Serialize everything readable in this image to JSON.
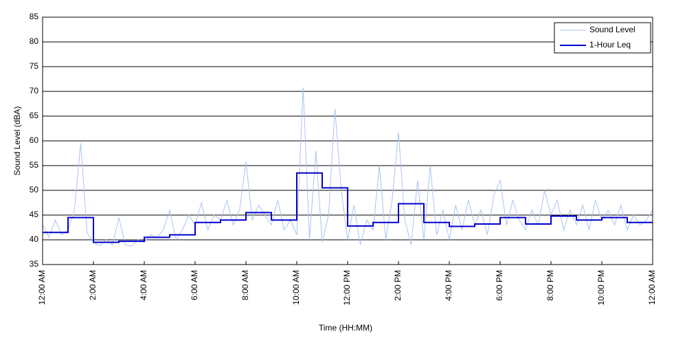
{
  "chart_data": {
    "type": "line",
    "xlabel": "Time (HH:MM)",
    "ylabel": "Sound Level (dBA)",
    "xlim": [
      0,
      24
    ],
    "xticks": [
      {
        "value": 0,
        "label": "12:00 AM"
      },
      {
        "value": 2,
        "label": "2:00 AM"
      },
      {
        "value": 4,
        "label": "4:00 AM"
      },
      {
        "value": 6,
        "label": "6:00 AM"
      },
      {
        "value": 8,
        "label": "8:00 AM"
      },
      {
        "value": 10,
        "label": "10:00 AM"
      },
      {
        "value": 12,
        "label": "12:00 PM"
      },
      {
        "value": 14,
        "label": "2:00 PM"
      },
      {
        "value": 16,
        "label": "4:00 PM"
      },
      {
        "value": 18,
        "label": "6:00 PM"
      },
      {
        "value": 20,
        "label": "8:00 PM"
      },
      {
        "value": 22,
        "label": "10:00 PM"
      },
      {
        "value": 24,
        "label": "12:00 AM"
      }
    ],
    "ylim": [
      35,
      85
    ],
    "yticks": [
      35,
      40,
      45,
      50,
      55,
      60,
      65,
      70,
      75,
      80,
      85
    ],
    "grid": true,
    "legend": "upper right",
    "series": [
      {
        "name": "Sound Level",
        "color": "#a9c2f2",
        "x": [
          0,
          0.25,
          0.5,
          0.75,
          1,
          1.25,
          1.5,
          1.75,
          2,
          2.25,
          2.5,
          2.75,
          3,
          3.25,
          3.5,
          3.75,
          4,
          4.25,
          4.5,
          4.75,
          5,
          5.25,
          5.5,
          5.75,
          6,
          6.25,
          6.5,
          6.75,
          7,
          7.25,
          7.5,
          7.75,
          8,
          8.25,
          8.5,
          8.75,
          9,
          9.25,
          9.5,
          9.75,
          10,
          10.25,
          10.5,
          10.75,
          11,
          11.25,
          11.5,
          11.75,
          12,
          12.25,
          12.5,
          12.75,
          13,
          13.25,
          13.5,
          13.75,
          14,
          14.25,
          14.5,
          14.75,
          15,
          15.25,
          15.5,
          15.75,
          16,
          16.25,
          16.5,
          16.75,
          17,
          17.25,
          17.5,
          17.75,
          18,
          18.25,
          18.5,
          18.75,
          19,
          19.25,
          19.5,
          19.75,
          20,
          20.25,
          20.5,
          20.75,
          21,
          21.25,
          21.5,
          21.75,
          22,
          22.25,
          22.5,
          22.75,
          23,
          23.25,
          23.5,
          23.75,
          24
        ],
        "values": [
          43,
          40.5,
          44,
          41,
          42,
          46,
          59.5,
          41.5,
          39.5,
          38.8,
          40,
          39,
          44.5,
          39,
          38.7,
          40,
          39.5,
          41,
          40.5,
          42,
          46,
          40,
          42,
          45,
          43,
          47.5,
          42,
          45,
          44,
          48,
          43,
          46,
          55.8,
          44,
          47,
          45,
          43,
          48,
          42,
          44,
          41,
          70.8,
          40,
          58,
          39.5,
          45,
          66.5,
          50,
          40,
          47,
          39,
          44,
          42,
          55,
          40,
          48,
          61.7,
          44,
          39,
          52,
          40,
          55,
          41,
          46,
          40,
          47,
          42,
          48,
          43,
          46,
          41,
          49,
          52,
          43,
          48,
          44,
          42,
          46,
          43,
          50,
          45,
          48,
          42,
          46,
          43,
          47,
          42,
          48,
          44,
          46,
          43,
          47,
          42,
          45,
          43,
          44,
          46
        ]
      },
      {
        "name": "1-Hour Leq",
        "color": "#0000cc",
        "step": "post",
        "x": [
          0,
          1,
          2,
          3,
          4,
          5,
          6,
          7,
          8,
          9,
          10,
          11,
          12,
          13,
          14,
          15,
          16,
          17,
          18,
          19,
          20,
          21,
          22,
          23
        ],
        "values": [
          41.5,
          44.5,
          39.5,
          39.7,
          40.5,
          41,
          43.5,
          44,
          45.5,
          44,
          53.5,
          50.5,
          42.8,
          43.5,
          47.3,
          43.5,
          42.7,
          43.2,
          44.5,
          43.2,
          44.8,
          44,
          44.5,
          43.5
        ]
      }
    ]
  }
}
